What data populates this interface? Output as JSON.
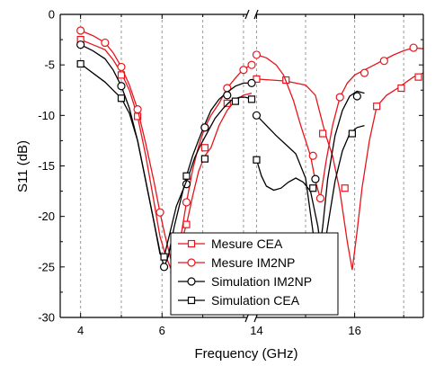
{
  "chart_data": {
    "type": "line",
    "xlabel": "Frequency (GHz)",
    "ylabel": "S11 (dB)",
    "ylim": [
      -30,
      0
    ],
    "yticks": [
      0,
      -5,
      -10,
      -15,
      -20,
      -25,
      -30
    ],
    "grid": "vertical dashed",
    "axis_break": true,
    "legend_position": "bottom-center",
    "xtick_labels": [
      "4",
      "6",
      "14",
      "16"
    ],
    "segment_left": {
      "xlim": [
        3.5,
        8.2
      ],
      "xticks": [
        4,
        5,
        6,
        7,
        8
      ],
      "labeled": [
        4,
        6
      ]
    },
    "segment_right": {
      "xlim": [
        13.9,
        17.4
      ],
      "xticks": [
        14,
        15,
        16,
        17
      ],
      "labeled": [
        14,
        16
      ]
    },
    "series": [
      {
        "name": "Mesure CEA",
        "color": "#e8141c",
        "marker": "square",
        "left": [
          [
            4.0,
            -2.5
          ],
          [
            4.3,
            -3.0
          ],
          [
            4.6,
            -3.5
          ],
          [
            4.8,
            -4.5
          ],
          [
            5.0,
            -5.8
          ],
          [
            5.2,
            -7.5
          ],
          [
            5.4,
            -10.1
          ],
          [
            5.6,
            -14.0
          ],
          [
            5.8,
            -18.5
          ],
          [
            5.95,
            -22.0
          ],
          [
            6.1,
            -24.0
          ],
          [
            6.3,
            -26.0
          ],
          [
            6.45,
            -22.8
          ],
          [
            6.6,
            -20.8
          ],
          [
            6.75,
            -18.0
          ],
          [
            6.9,
            -15.5
          ],
          [
            7.05,
            -14.0
          ],
          [
            7.2,
            -13.2
          ],
          [
            7.4,
            -11.0
          ],
          [
            7.6,
            -9.5
          ],
          [
            7.8,
            -8.5
          ],
          [
            8.0,
            -8.0
          ],
          [
            8.2,
            -7.8
          ]
        ],
        "right": [
          [
            14.0,
            -6.4
          ],
          [
            14.3,
            -6.5
          ],
          [
            14.6,
            -6.6
          ],
          [
            14.8,
            -6.8
          ],
          [
            15.0,
            -7.0
          ],
          [
            15.2,
            -8.0
          ],
          [
            15.4,
            -11.8
          ],
          [
            15.55,
            -14.0
          ],
          [
            15.7,
            -17.5
          ],
          [
            15.85,
            -22.5
          ],
          [
            15.95,
            -25.3
          ],
          [
            16.05,
            -21.5
          ],
          [
            16.15,
            -17.2
          ],
          [
            16.3,
            -12.5
          ],
          [
            16.45,
            -9.1
          ],
          [
            16.65,
            -8.0
          ],
          [
            16.85,
            -7.4
          ],
          [
            17.05,
            -6.7
          ],
          [
            17.2,
            -6.2
          ],
          [
            17.4,
            -5.8
          ]
        ]
      },
      {
        "name": "Mesure IM2NP",
        "color": "#e8141c",
        "marker": "circle",
        "left": [
          [
            4.0,
            -1.6
          ],
          [
            4.3,
            -2.1
          ],
          [
            4.6,
            -2.8
          ],
          [
            4.8,
            -3.8
          ],
          [
            5.0,
            -5.2
          ],
          [
            5.2,
            -7.0
          ],
          [
            5.4,
            -9.4
          ],
          [
            5.6,
            -12.8
          ],
          [
            5.8,
            -16.5
          ],
          [
            5.95,
            -19.6
          ],
          [
            6.05,
            -21.5
          ],
          [
            6.2,
            -24.0
          ],
          [
            6.3,
            -25.6
          ],
          [
            6.45,
            -22.3
          ],
          [
            6.6,
            -18.6
          ],
          [
            6.75,
            -15.4
          ],
          [
            6.9,
            -13.0
          ],
          [
            7.05,
            -11.2
          ],
          [
            7.2,
            -10.0
          ],
          [
            7.4,
            -8.8
          ],
          [
            7.6,
            -7.3
          ],
          [
            7.8,
            -6.3
          ],
          [
            8.0,
            -5.4
          ],
          [
            8.2,
            -5.0
          ]
        ],
        "right": [
          [
            14.0,
            -4.0
          ],
          [
            14.2,
            -4.3
          ],
          [
            14.4,
            -5.0
          ],
          [
            14.55,
            -6.0
          ],
          [
            14.75,
            -8.5
          ],
          [
            14.9,
            -11.0
          ],
          [
            15.1,
            -14.0
          ],
          [
            15.2,
            -16.5
          ],
          [
            15.3,
            -18.2
          ],
          [
            15.42,
            -14.5
          ],
          [
            15.55,
            -11.0
          ],
          [
            15.7,
            -8.2
          ],
          [
            15.85,
            -6.8
          ],
          [
            16.0,
            -6.0
          ],
          [
            16.2,
            -5.5
          ],
          [
            16.4,
            -5.0
          ],
          [
            16.6,
            -4.5
          ],
          [
            16.8,
            -4.0
          ],
          [
            17.0,
            -3.6
          ],
          [
            17.2,
            -3.3
          ],
          [
            17.4,
            -3.4
          ]
        ]
      },
      {
        "name": "Simulation IM2NP",
        "color": "#000000",
        "marker": "circle",
        "left": [
          [
            4.0,
            -3.0
          ],
          [
            4.3,
            -3.6
          ],
          [
            4.6,
            -4.4
          ],
          [
            4.8,
            -5.5
          ],
          [
            5.0,
            -7.1
          ],
          [
            5.2,
            -9.3
          ],
          [
            5.4,
            -12.5
          ],
          [
            5.6,
            -16.5
          ],
          [
            5.8,
            -20.5
          ],
          [
            5.95,
            -23.5
          ],
          [
            6.05,
            -25.0
          ],
          [
            6.15,
            -24.0
          ],
          [
            6.3,
            -21.0
          ],
          [
            6.45,
            -18.5
          ],
          [
            6.6,
            -16.0
          ],
          [
            6.75,
            -14.0
          ],
          [
            6.9,
            -12.4
          ],
          [
            7.05,
            -10.9
          ],
          [
            7.2,
            -9.5
          ],
          [
            7.4,
            -8.4
          ],
          [
            7.6,
            -7.7
          ],
          [
            7.8,
            -7.1
          ],
          [
            8.0,
            -6.8
          ],
          [
            8.2,
            -6.8
          ]
        ],
        "right": [
          [
            14.0,
            -10.0
          ],
          [
            14.2,
            -11.0
          ],
          [
            14.4,
            -12.0
          ],
          [
            14.6,
            -12.9
          ],
          [
            14.8,
            -13.8
          ],
          [
            15.0,
            -16.2
          ],
          [
            15.15,
            -21.5
          ],
          [
            15.25,
            -24.5
          ],
          [
            15.35,
            -21.0
          ],
          [
            15.45,
            -16.3
          ],
          [
            15.6,
            -12.0
          ],
          [
            15.75,
            -9.5
          ],
          [
            15.9,
            -8.1
          ],
          [
            16.05,
            -7.6
          ],
          [
            16.2,
            -7.8
          ]
        ]
      },
      {
        "name": "Simulation CEA",
        "color": "#000000",
        "marker": "square",
        "left": [
          [
            4.0,
            -4.9
          ],
          [
            4.3,
            -5.8
          ],
          [
            4.6,
            -6.7
          ],
          [
            4.8,
            -7.5
          ],
          [
            5.0,
            -8.3
          ],
          [
            5.2,
            -9.8
          ],
          [
            5.4,
            -12.5
          ],
          [
            5.6,
            -16.5
          ],
          [
            5.8,
            -20.5
          ],
          [
            5.95,
            -23.7
          ],
          [
            6.05,
            -24.0
          ],
          [
            6.2,
            -21.5
          ],
          [
            6.35,
            -19.0
          ],
          [
            6.5,
            -17.5
          ],
          [
            6.65,
            -16.0
          ],
          [
            6.8,
            -14.2
          ],
          [
            6.95,
            -12.9
          ],
          [
            7.1,
            -11.8
          ],
          [
            7.3,
            -10.3
          ],
          [
            7.5,
            -9.3
          ],
          [
            7.7,
            -8.5
          ],
          [
            7.9,
            -8.2
          ],
          [
            8.05,
            -8.2
          ],
          [
            8.2,
            -8.4
          ]
        ],
        "right": [
          [
            14.0,
            -14.4
          ],
          [
            14.1,
            -16.0
          ],
          [
            14.2,
            -17.0
          ],
          [
            14.35,
            -17.4
          ],
          [
            14.5,
            -17.2
          ],
          [
            14.65,
            -16.6
          ],
          [
            14.8,
            -16.2
          ],
          [
            14.95,
            -16.6
          ],
          [
            15.1,
            -17.5
          ],
          [
            15.25,
            -21.0
          ],
          [
            15.32,
            -23.5
          ],
          [
            15.4,
            -22.5
          ],
          [
            15.5,
            -19.5
          ],
          [
            15.6,
            -16.5
          ],
          [
            15.75,
            -13.5
          ],
          [
            15.9,
            -11.8
          ],
          [
            16.05,
            -11.2
          ],
          [
            16.2,
            -11.0
          ]
        ],
        "marker_left": [
          [
            4.0,
            -4.9
          ],
          [
            5.0,
            -8.3
          ],
          [
            6.05,
            -24.0
          ],
          [
            6.6,
            -16.0
          ],
          [
            7.05,
            -12.7
          ],
          [
            7.8,
            -8.6
          ],
          [
            8.2,
            -8.4
          ]
        ],
        "marker_right": [
          [
            14.0,
            -14.4
          ],
          [
            15.15,
            -17.2
          ],
          [
            15.95,
            -11.8
          ]
        ]
      }
    ],
    "markers": {
      "Mesure CEA": {
        "left": [
          [
            4.0,
            -2.5
          ],
          [
            5.0,
            -6.0
          ],
          [
            5.4,
            -10.1
          ],
          [
            6.3,
            -26.0
          ],
          [
            6.6,
            -20.8
          ],
          [
            7.05,
            -13.2
          ],
          [
            7.6,
            -8.8
          ]
        ],
        "right": [
          [
            14.0,
            -6.4
          ],
          [
            14.6,
            -6.5
          ],
          [
            15.35,
            -11.8
          ],
          [
            15.8,
            -17.2
          ],
          [
            16.45,
            -9.1
          ],
          [
            16.95,
            -7.3
          ],
          [
            17.3,
            -6.2
          ]
        ]
      },
      "Mesure IM2NP": {
        "left": [
          [
            4.0,
            -1.6
          ],
          [
            4.6,
            -2.8
          ],
          [
            5.0,
            -5.2
          ],
          [
            5.4,
            -9.4
          ],
          [
            5.95,
            -19.6
          ],
          [
            6.3,
            -25.6
          ],
          [
            6.6,
            -18.6
          ],
          [
            7.05,
            -11.2
          ],
          [
            7.6,
            -7.3
          ],
          [
            8.0,
            -5.5
          ],
          [
            8.2,
            -5.0
          ]
        ],
        "right": [
          [
            14.0,
            -4.0
          ],
          [
            15.15,
            -14.0
          ],
          [
            15.3,
            -18.2
          ],
          [
            15.7,
            -8.2
          ],
          [
            16.2,
            -5.8
          ],
          [
            16.6,
            -4.6
          ],
          [
            17.2,
            -3.3
          ]
        ]
      },
      "Simulation IM2NP": {
        "left": [
          [
            4.0,
            -3.0
          ],
          [
            5.0,
            -7.1
          ],
          [
            6.05,
            -25.0
          ],
          [
            6.6,
            -16.8
          ],
          [
            7.05,
            -11.2
          ],
          [
            7.6,
            -8.0
          ],
          [
            8.2,
            -6.8
          ]
        ],
        "right": [
          [
            14.0,
            -10.0
          ],
          [
            15.2,
            -16.3
          ],
          [
            16.05,
            -8.1
          ]
        ]
      },
      "Simulation CEA": {
        "left": [
          [
            4.0,
            -4.9
          ],
          [
            5.0,
            -8.3
          ],
          [
            6.05,
            -24.0
          ],
          [
            6.6,
            -16.0
          ],
          [
            7.05,
            -14.3
          ],
          [
            7.8,
            -8.6
          ],
          [
            8.2,
            -8.4
          ]
        ],
        "right": [
          [
            14.0,
            -14.4
          ],
          [
            15.15,
            -17.2
          ],
          [
            15.95,
            -11.8
          ]
        ]
      }
    }
  }
}
